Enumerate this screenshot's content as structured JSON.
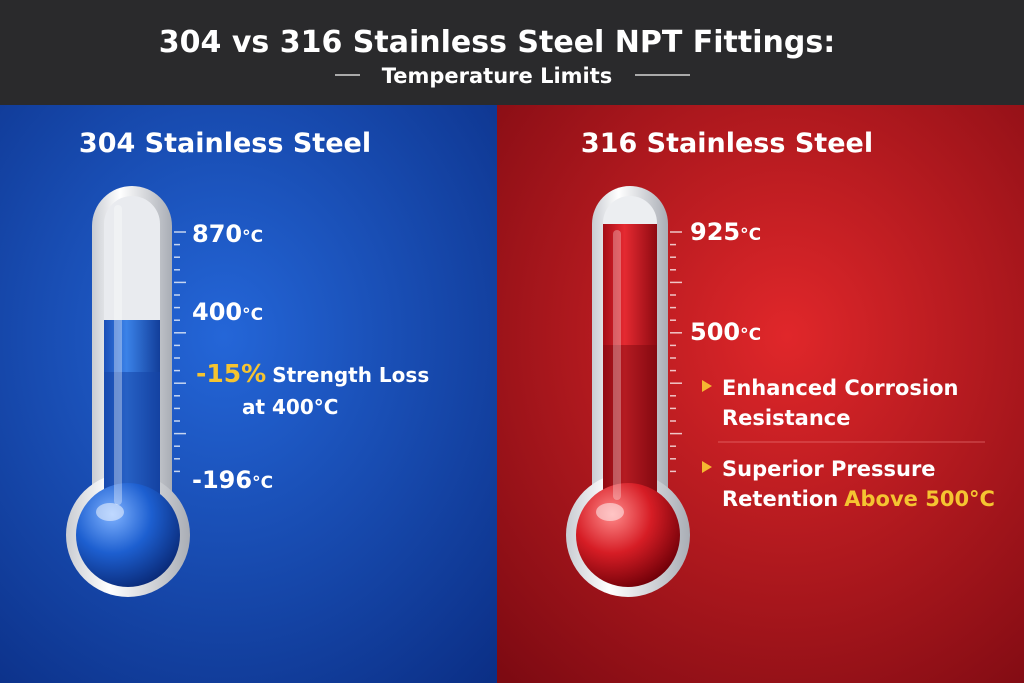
{
  "header": {
    "title": "304 vs 316 Stainless Steel NPT Fittings:",
    "subtitle": "Temperature Limits"
  },
  "panels": [
    {
      "title": "304 Stainless Steel",
      "scale_labels": [
        {
          "value": "870",
          "unit": "°C"
        },
        {
          "value": "400",
          "unit": "°C"
        },
        {
          "value": "-196",
          "unit": "°C"
        }
      ],
      "note": {
        "highlight": "-15%",
        "text": "Strength Loss",
        "line2": "at 400°C"
      }
    },
    {
      "title": "316 Stainless Steel",
      "scale_labels": [
        {
          "value": "925",
          "unit": "°C"
        },
        {
          "value": "500",
          "unit": "°C"
        }
      ],
      "bullets": [
        {
          "lines": [
            "Enhanced Corrosion",
            "Resistance"
          ]
        },
        {
          "lines": [
            "Superior Pressure",
            "Retention"
          ],
          "highlight": "Above 500°C"
        }
      ]
    }
  ]
}
